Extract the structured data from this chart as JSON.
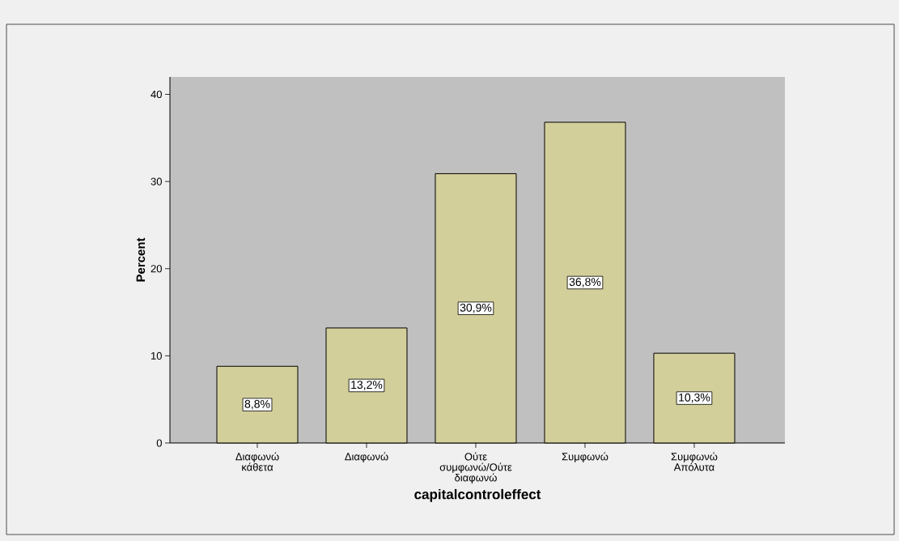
{
  "chart_data": {
    "type": "bar",
    "xlabel": "capitalcontroleffect",
    "ylabel": "Percent",
    "categories": [
      "Διαφωνώ κάθετα",
      "Διαφωνώ",
      "Ούτε συμφωνώ/Ούτε διαφωνώ",
      "Συμφωνώ",
      "Συμφωνώ Απόλυτα"
    ],
    "values": [
      8.8,
      13.2,
      30.9,
      36.8,
      10.3
    ],
    "value_labels": [
      "8,8%",
      "13,2%",
      "30,9%",
      "36,8%",
      "10,3%"
    ],
    "color": "#d3cf9a",
    "ylim": [
      0,
      42
    ],
    "yticks": [
      0,
      10,
      20,
      30,
      40
    ]
  }
}
